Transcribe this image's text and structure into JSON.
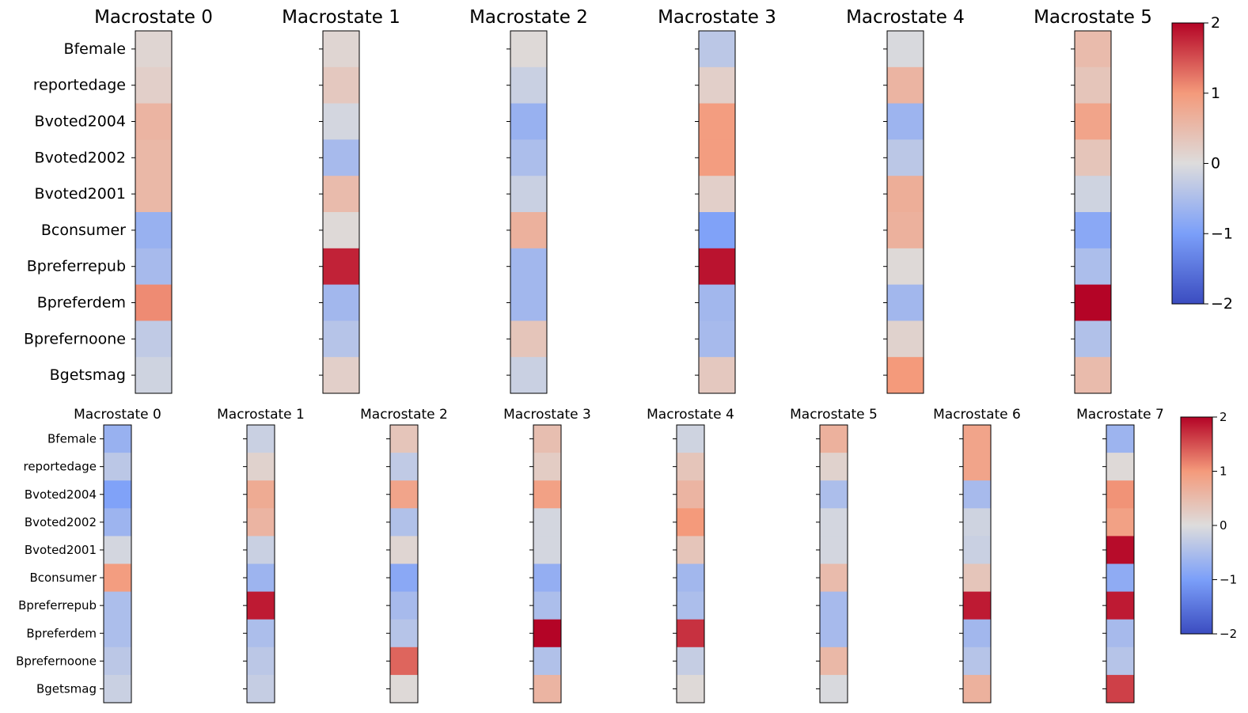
{
  "chart_data": [
    {
      "type": "heatmap",
      "variables": [
        "Bfemale",
        "reportedage",
        "Bvoted2004",
        "Bvoted2002",
        "Bvoted2001",
        "Bconsumer",
        "Bpreferrepub",
        "Bpreferdem",
        "Bprefernoone",
        "Bgetsmag"
      ],
      "panels": [
        {
          "title": "Macrostate 0",
          "values": [
            0.1,
            0.2,
            0.6,
            0.55,
            0.55,
            -0.7,
            -0.55,
            1.1,
            -0.3,
            -0.15
          ]
        },
        {
          "title": "Macrostate 1",
          "values": [
            0.1,
            0.3,
            -0.1,
            -0.55,
            0.5,
            0.05,
            1.8,
            -0.6,
            -0.4,
            0.2
          ]
        },
        {
          "title": "Macrostate 2",
          "values": [
            0.05,
            -0.2,
            -0.7,
            -0.5,
            -0.2,
            0.65,
            -0.6,
            -0.6,
            0.35,
            -0.2
          ]
        },
        {
          "title": "Macrostate 3",
          "values": [
            -0.35,
            0.2,
            0.95,
            0.95,
            0.2,
            -0.95,
            1.9,
            -0.6,
            -0.55,
            0.3
          ]
        },
        {
          "title": "Macrostate 4",
          "values": [
            -0.05,
            0.6,
            -0.65,
            -0.35,
            0.7,
            0.65,
            0.05,
            -0.6,
            0.15,
            1.0
          ]
        },
        {
          "title": "Macrostate 5",
          "values": [
            0.5,
            0.35,
            0.85,
            0.35,
            -0.15,
            -0.85,
            -0.5,
            2.0,
            -0.45,
            0.5
          ]
        }
      ],
      "colorbar": {
        "ticks": [
          "2",
          "1",
          "0",
          "−1",
          "−2"
        ],
        "range": [
          -2,
          2
        ],
        "colormap": "coolwarm"
      }
    },
    {
      "type": "heatmap",
      "variables": [
        "Bfemale",
        "reportedage",
        "Bvoted2004",
        "Bvoted2002",
        "Bvoted2001",
        "Bconsumer",
        "Bpreferrepub",
        "Bpreferdem",
        "Bprefernoone",
        "Bgetsmag"
      ],
      "panels": [
        {
          "title": "Macrostate 0",
          "values": [
            -0.7,
            -0.35,
            -0.95,
            -0.65,
            -0.1,
            0.95,
            -0.5,
            -0.5,
            -0.35,
            -0.2
          ]
        },
        {
          "title": "Macrostate 1",
          "values": [
            -0.2,
            0.15,
            0.75,
            0.6,
            -0.2,
            -0.65,
            1.85,
            -0.5,
            -0.35,
            -0.25
          ]
        },
        {
          "title": "Macrostate 2",
          "values": [
            0.35,
            -0.3,
            0.85,
            -0.45,
            0.1,
            -0.85,
            -0.55,
            -0.4,
            1.35,
            0.05
          ]
        },
        {
          "title": "Macrostate 3",
          "values": [
            0.45,
            0.25,
            0.9,
            -0.1,
            -0.1,
            -0.75,
            -0.5,
            2.0,
            -0.45,
            0.6
          ]
        },
        {
          "title": "Macrostate 4",
          "values": [
            -0.15,
            0.35,
            0.6,
            1.0,
            0.35,
            -0.6,
            -0.5,
            1.7,
            -0.25,
            0.05
          ]
        },
        {
          "title": "Macrostate 5",
          "values": [
            0.65,
            0.15,
            -0.5,
            -0.1,
            -0.1,
            0.5,
            -0.55,
            -0.55,
            0.55,
            -0.05
          ]
        },
        {
          "title": "Macrostate 6",
          "values": [
            0.85,
            0.85,
            -0.55,
            -0.15,
            -0.2,
            0.35,
            1.85,
            -0.6,
            -0.4,
            0.65
          ]
        },
        {
          "title": "Macrostate 7",
          "values": [
            -0.65,
            0.05,
            1.05,
            0.9,
            1.95,
            -0.8,
            1.85,
            -0.55,
            -0.4,
            1.6
          ]
        }
      ],
      "colorbar": {
        "ticks": [
          "2",
          "1",
          "0",
          "−1",
          "−2"
        ],
        "range": [
          -2,
          2
        ],
        "colormap": "coolwarm"
      }
    }
  ]
}
